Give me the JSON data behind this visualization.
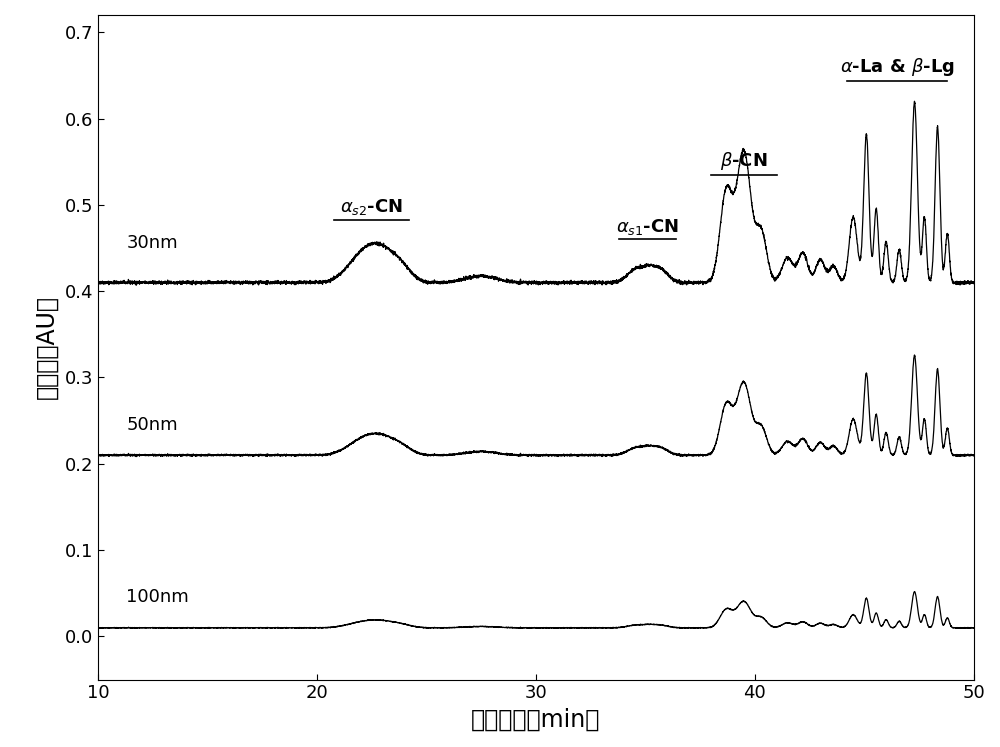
{
  "xlim": [
    10,
    50
  ],
  "ylim": [
    -0.05,
    0.72
  ],
  "xlabel": "洗脱时间（min）",
  "ylabel": "吸光度（AU）",
  "xticks": [
    10,
    20,
    30,
    40,
    50
  ],
  "yticks": [
    0.0,
    0.1,
    0.2,
    0.3,
    0.4,
    0.5,
    0.6,
    0.7
  ],
  "baselines": {
    "nm30": 0.41,
    "nm50": 0.21,
    "nm100": 0.01
  },
  "line_color": "#000000",
  "background_color": "#ffffff",
  "fontsize_label": 17,
  "fontsize_tick": 13,
  "fontsize_annot": 13,
  "fontsize_trace_label": 13
}
